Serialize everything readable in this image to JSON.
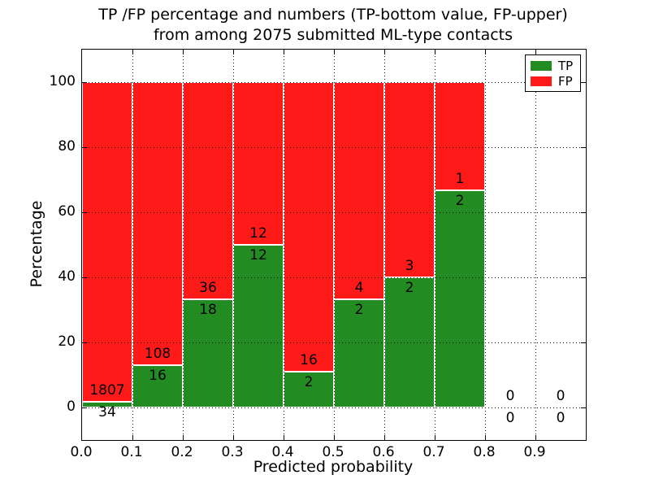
{
  "figure": {
    "title_line1": "TP /FP percentage and numbers (TP-bottom value, FP-upper)",
    "title_line2": "from among 2075 submitted ML-type contacts"
  },
  "chart_data": {
    "type": "bar",
    "stacked": true,
    "title": "TP /FP percentage and numbers (TP-bottom value, FP-upper)\nfrom among 2075 submitted ML-type contacts",
    "xlabel": "Predicted probability",
    "ylabel": "Percentage",
    "total_contacts": 2075,
    "xlim": [
      0.0,
      1.0
    ],
    "ylim": [
      -10,
      110
    ],
    "grid": true,
    "grid_style": "dotted",
    "ytick_values": [
      0,
      20,
      40,
      60,
      80,
      100
    ],
    "ytick_labels": [
      "0",
      "20",
      "40",
      "60",
      "80",
      "100"
    ],
    "xtick_values": [
      0.0,
      0.1,
      0.2,
      0.3,
      0.4,
      0.5,
      0.6,
      0.7,
      0.8,
      0.9
    ],
    "xtick_labels": [
      "0.0",
      "0.1",
      "0.2",
      "0.3",
      "0.4",
      "0.5",
      "0.6",
      "0.7",
      "0.8",
      "0.9"
    ],
    "legend": {
      "position": "upper right",
      "entries": [
        {
          "label": "TP",
          "color": "#228B22"
        },
        {
          "label": "FP",
          "color": "#FF1A1A"
        }
      ]
    },
    "bins": [
      {
        "range": [
          0.0,
          0.1
        ],
        "tp": 34,
        "fp": 1807,
        "tp_pct": 1.85,
        "fp_pct": 98.15
      },
      {
        "range": [
          0.1,
          0.2
        ],
        "tp": 16,
        "fp": 108,
        "tp_pct": 12.9,
        "fp_pct": 87.1
      },
      {
        "range": [
          0.2,
          0.3
        ],
        "tp": 18,
        "fp": 36,
        "tp_pct": 33.33,
        "fp_pct": 66.67
      },
      {
        "range": [
          0.3,
          0.4
        ],
        "tp": 12,
        "fp": 12,
        "tp_pct": 50.0,
        "fp_pct": 50.0
      },
      {
        "range": [
          0.4,
          0.5
        ],
        "tp": 2,
        "fp": 16,
        "tp_pct": 11.11,
        "fp_pct": 88.89
      },
      {
        "range": [
          0.5,
          0.6
        ],
        "tp": 2,
        "fp": 4,
        "tp_pct": 33.33,
        "fp_pct": 66.67
      },
      {
        "range": [
          0.6,
          0.7
        ],
        "tp": 2,
        "fp": 3,
        "tp_pct": 40.0,
        "fp_pct": 60.0
      },
      {
        "range": [
          0.7,
          0.8
        ],
        "tp": 2,
        "fp": 1,
        "tp_pct": 66.67,
        "fp_pct": 33.33
      },
      {
        "range": [
          0.8,
          0.9
        ],
        "tp": 0,
        "fp": 0,
        "tp_pct": 0,
        "fp_pct": 0
      },
      {
        "range": [
          0.9,
          1.0
        ],
        "tp": 0,
        "fp": 0,
        "tp_pct": 0,
        "fp_pct": 0
      }
    ],
    "colors": {
      "tp": "#228B22",
      "fp": "#FF1A1A",
      "grid": "#111111",
      "axes_border": "#000000",
      "background": "#FFFFFF",
      "bar_edge": "#FFFFFF",
      "text": "#000000"
    }
  }
}
